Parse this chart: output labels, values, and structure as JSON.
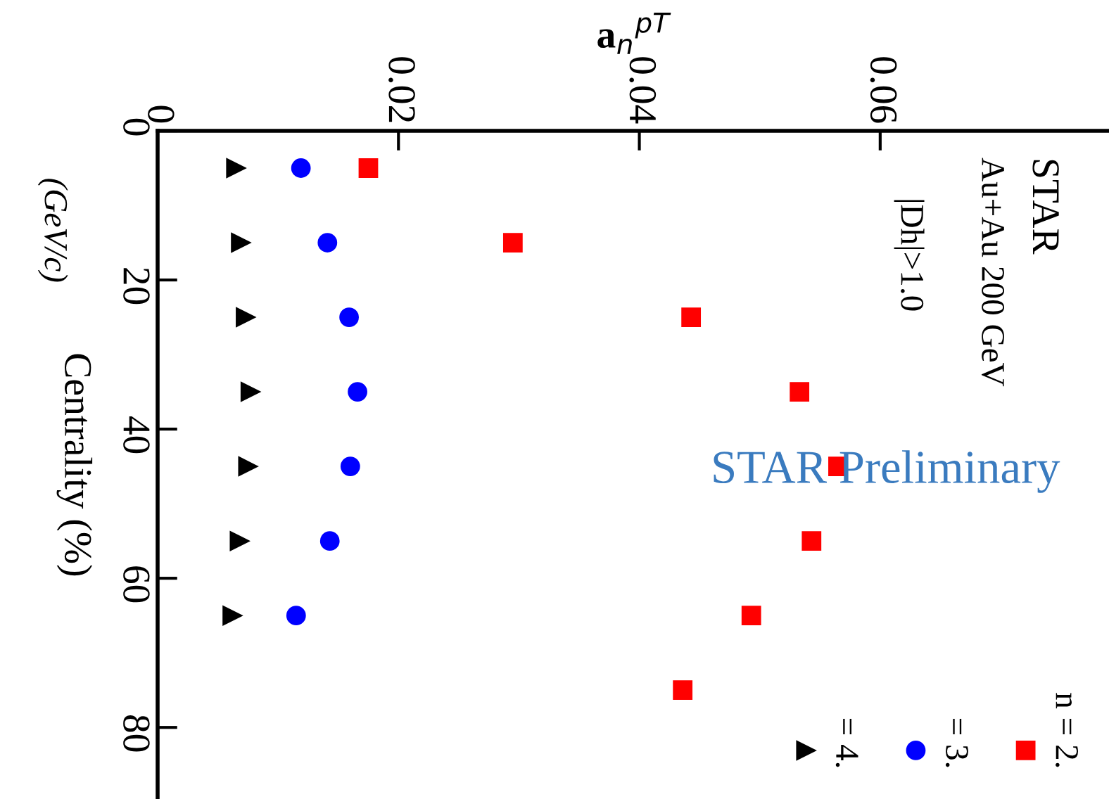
{
  "chart_data": {
    "type": "scatter",
    "xlabel": "a$_{n}$$^{pT}$",
    "ylabel": "Centrality (%)",
    "xlim": [
      0,
      0.079
    ],
    "xticks": [
      0,
      0.02,
      0.04,
      0.06
    ],
    "ylim": [
      89.6,
      0
    ],
    "yticks": [
      0,
      20,
      40,
      60,
      80
    ],
    "series": [
      {
        "name": "n = 2.",
        "color": "#ff0000",
        "marker": "square",
        "x": [
          0.0175,
          0.0295,
          0.0443,
          0.0533,
          0.0565,
          0.0543,
          0.0493,
          0.0436
        ],
        "values": [
          5,
          15,
          25,
          35,
          45,
          55,
          65,
          75
        ]
      },
      {
        "name": "= 3.",
        "color": "#0000ff",
        "marker": "circle",
        "x": [
          0.0119,
          0.0141,
          0.0159,
          0.0166,
          0.016,
          0.0143,
          0.0115
        ],
        "values": [
          5,
          15,
          25,
          35,
          45,
          55,
          65
        ]
      },
      {
        "name": "= 4.",
        "color": "#000000",
        "marker": "triangle",
        "x": [
          0.0065,
          0.0069,
          0.0073,
          0.0077,
          0.0075,
          0.0068,
          0.0062
        ],
        "values": [
          5,
          15,
          25,
          35,
          45,
          55,
          65
        ]
      }
    ],
    "legend": "bottom right",
    "grid": false,
    "annotations": [
      "STAR",
      "Au+Au 200 GeV",
      "|Dh|>1.0",
      "STAR Preliminary",
      "(GeV/c)"
    ]
  }
}
